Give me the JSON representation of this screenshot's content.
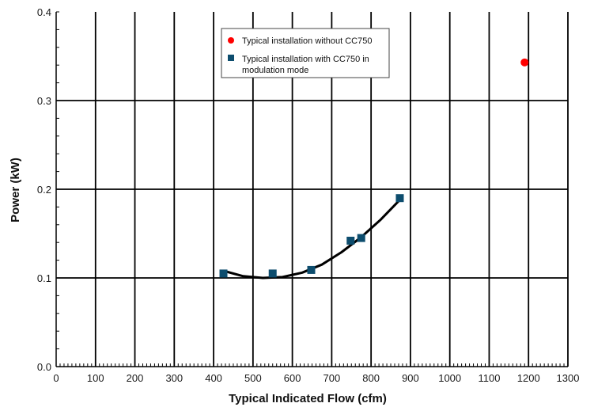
{
  "chart_data": {
    "type": "scatter",
    "title": "",
    "xlabel": "Typical Indicated Flow (cfm)",
    "ylabel": "Power (kW)",
    "xlim": [
      0,
      1300
    ],
    "ylim": [
      0,
      0.4
    ],
    "x_ticks": [
      0,
      100,
      200,
      300,
      400,
      500,
      600,
      700,
      800,
      900,
      1000,
      1100,
      1200,
      1300
    ],
    "y_ticks": [
      0.0,
      0.1,
      0.2,
      0.3,
      0.4
    ],
    "x_tick_labels": [
      "0",
      "100",
      "200",
      "300",
      "400",
      "500",
      "600",
      "700",
      "800",
      "900",
      "1000",
      "1100",
      "1200",
      "1300"
    ],
    "y_tick_labels": [
      "0.0",
      "0.1",
      "0.2",
      "0.3",
      "0.4"
    ],
    "grid": true,
    "legend_position": "top-center",
    "series": [
      {
        "name": "Typical installation without CC750",
        "marker": "circle",
        "color": "#ff0000",
        "points": [
          {
            "x": 1190,
            "y": 0.343
          }
        ]
      },
      {
        "name": "Typical installation with CC750 in modulation mode",
        "marker": "square",
        "color": "#0d4d6e",
        "points": [
          {
            "x": 425,
            "y": 0.105
          },
          {
            "x": 550,
            "y": 0.105
          },
          {
            "x": 648,
            "y": 0.109
          },
          {
            "x": 748,
            "y": 0.142
          },
          {
            "x": 775,
            "y": 0.145
          },
          {
            "x": 873,
            "y": 0.19
          }
        ],
        "fit_curve": {
          "color": "#000000",
          "points": [
            {
              "x": 425,
              "y": 0.108
            },
            {
              "x": 475,
              "y": 0.102
            },
            {
              "x": 525,
              "y": 0.1
            },
            {
              "x": 575,
              "y": 0.101
            },
            {
              "x": 625,
              "y": 0.106
            },
            {
              "x": 675,
              "y": 0.115
            },
            {
              "x": 725,
              "y": 0.129
            },
            {
              "x": 775,
              "y": 0.146
            },
            {
              "x": 825,
              "y": 0.166
            },
            {
              "x": 873,
              "y": 0.188
            }
          ]
        }
      }
    ]
  }
}
